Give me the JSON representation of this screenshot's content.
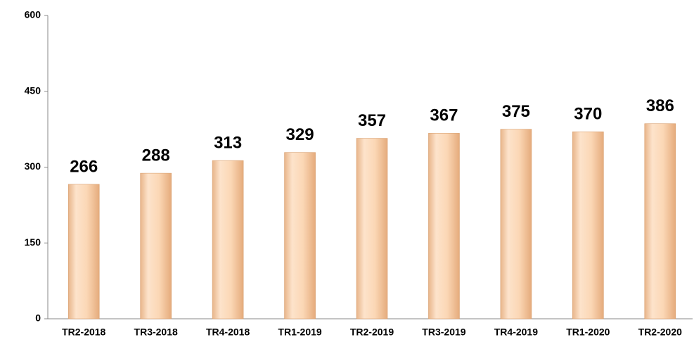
{
  "chart_data": {
    "type": "bar",
    "categories": [
      "TR2-2018",
      "TR3-2018",
      "TR4-2018",
      "TR1-2019",
      "TR2-2019",
      "TR3-2019",
      "TR4-2019",
      "TR1-2020",
      "TR2-2020"
    ],
    "values": [
      266,
      288,
      313,
      329,
      357,
      367,
      375,
      370,
      386
    ],
    "color": "#f9cfa8",
    "ylim": [
      0,
      600
    ],
    "yticks": [
      0,
      150,
      300,
      450,
      600
    ],
    "grid": false
  }
}
